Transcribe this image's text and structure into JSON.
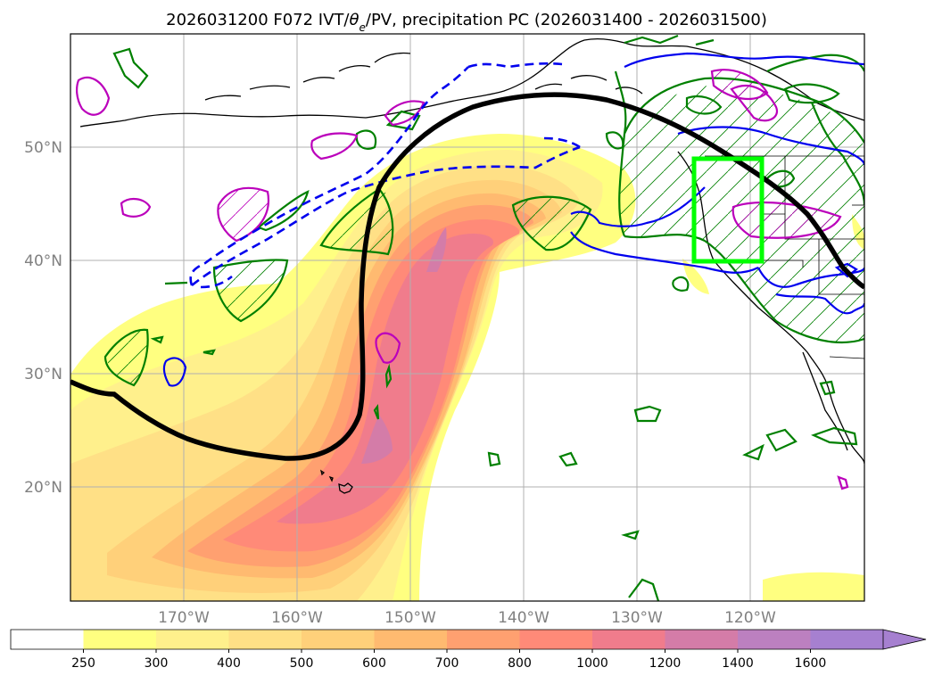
{
  "title": {
    "prefix": "2026031200 F072 IVT/",
    "theta": "θ",
    "theta_sub": "e",
    "suffix": "/PV, precipitation PC (2026031400 - 2026031500)"
  },
  "map": {
    "lon_labels": [
      "170°W",
      "160°W",
      "150°W",
      "140°W",
      "130°W",
      "120°W"
    ],
    "lat_labels": [
      "50°N",
      "40°N",
      "30°N",
      "20°N"
    ]
  },
  "colorbar": {
    "ticks": [
      "250",
      "300",
      "400",
      "500",
      "600",
      "700",
      "800",
      "1000",
      "1200",
      "1400",
      "1600"
    ],
    "colors": [
      "#ffffff",
      "#ffff80",
      "#fff08c",
      "#ffe086",
      "#ffd07a",
      "#ffba70",
      "#ffa070",
      "#ff8a78",
      "#f07c8c",
      "#d47ca8",
      "#bc80c0",
      "#a680d0"
    ]
  },
  "legend_colors": {
    "ivt_contour": "#000000",
    "pv_dashed": "#0000ee",
    "precip_green": "#008000",
    "magenta": "#bb00bb",
    "target_box": "#00ff00"
  }
}
